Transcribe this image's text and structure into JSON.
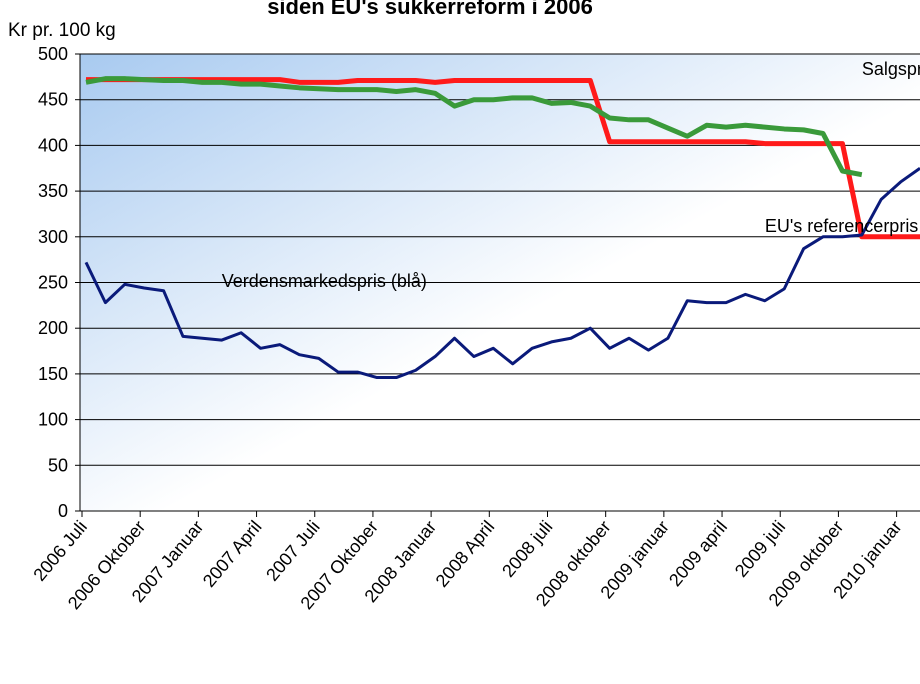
{
  "chart_data": {
    "type": "line",
    "title": "siden EU's sukkerreform i 2006",
    "y_label": "Kr pr. 100 kg",
    "categories": [
      "2006 Juli",
      null,
      null,
      "2006 Oktober",
      null,
      null,
      "2007 Januar",
      null,
      null,
      "2007 April",
      null,
      null,
      "2007 Juli",
      null,
      null,
      "2007 Oktober",
      null,
      null,
      "2008 Januar",
      null,
      null,
      "2008 April",
      null,
      null,
      "2008 juli",
      null,
      null,
      "2008 oktober",
      null,
      null,
      "2009 januar",
      null,
      null,
      "2009 april",
      null,
      null,
      "2009 juli",
      null,
      null,
      "2009 oktober",
      null,
      null,
      "2010 januar",
      null
    ],
    "series": [
      {
        "color": "#ff1a1a",
        "values": [
          472,
          472,
          472,
          472,
          472,
          472,
          472,
          472,
          472,
          472,
          472,
          469,
          469,
          469,
          471,
          471,
          471,
          471,
          469,
          471,
          471,
          471,
          471,
          471,
          471,
          471,
          471,
          404,
          404,
          404,
          404,
          404,
          404,
          404,
          404,
          402,
          402,
          402,
          402,
          402,
          300,
          300,
          300,
          300
        ]
      },
      {
        "color": "#3a9a3a",
        "values": [
          469,
          473,
          473,
          472,
          471,
          471,
          469,
          469,
          467,
          467,
          465,
          463,
          462,
          461,
          461,
          461,
          459,
          461,
          457,
          443,
          450,
          450,
          452,
          452,
          446,
          447,
          443,
          430,
          428,
          428,
          419,
          410,
          422,
          420,
          422,
          420,
          418,
          417,
          413,
          372,
          368,
          null,
          null,
          null
        ]
      },
      {
        "color": "#0a1a7a",
        "values": [
          272,
          228,
          248,
          244,
          241,
          191,
          189,
          187,
          195,
          178,
          182,
          171,
          167,
          152,
          152,
          146,
          146,
          154,
          169,
          189,
          169,
          178,
          161,
          178,
          185,
          189,
          200,
          178,
          189,
          176,
          189,
          230,
          228,
          228,
          237,
          230,
          243,
          287,
          300,
          300,
          302,
          341,
          360,
          375
        ]
      }
    ],
    "annotations": [
      {
        "text": "Salgspris virksomheder (grøn)",
        "x": 40,
        "y": 477
      },
      {
        "text": "EU's referencerpris (rød)",
        "x": 35,
        "y": 305
      },
      {
        "text": "Verdensmarkedspris (blå)",
        "x": 7,
        "y": 245
      }
    ],
    "ylim": [
      0,
      500
    ],
    "yticks": [
      0,
      50,
      100,
      150,
      200,
      250,
      300,
      350,
      400,
      450,
      500
    ],
    "grid": true
  }
}
